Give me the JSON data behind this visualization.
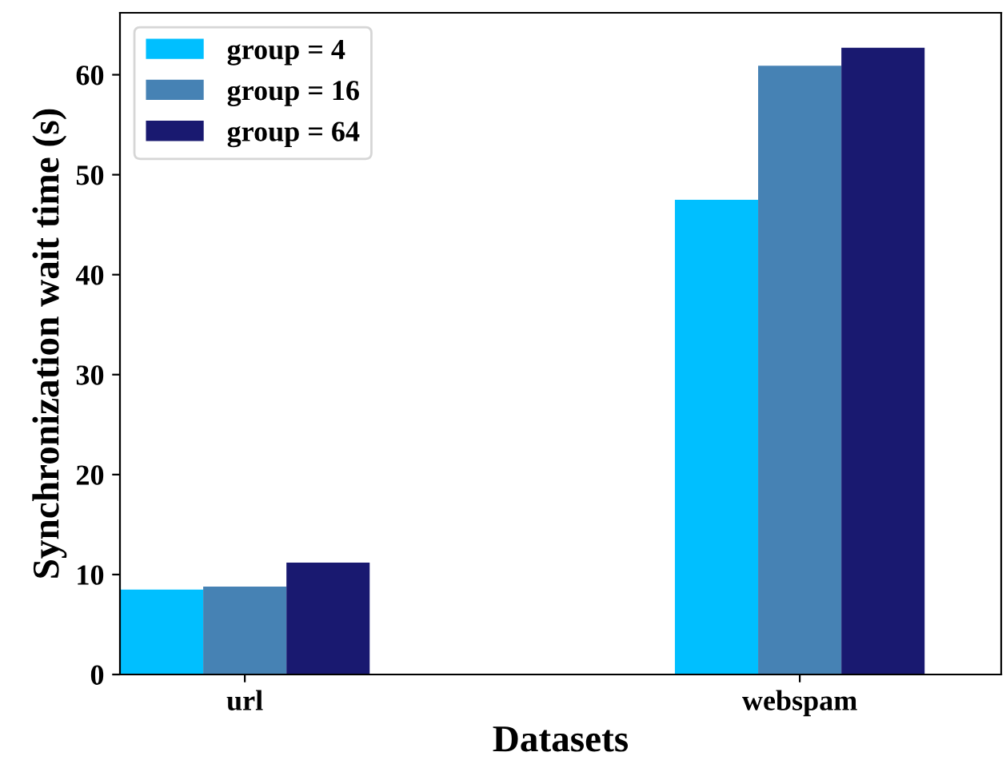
{
  "chart_data": {
    "type": "bar",
    "xlabel": "Datasets",
    "ylabel": "Synchronization wait time (s)",
    "categories": [
      "url",
      "webspam"
    ],
    "series": [
      {
        "name": "group = 4",
        "color": "#00bfff",
        "values": [
          8.5,
          47.5
        ]
      },
      {
        "name": "group = 16",
        "color": "#4682b4",
        "values": [
          8.8,
          60.9
        ]
      },
      {
        "name": "group = 64",
        "color": "#191970",
        "values": [
          11.2,
          62.7
        ]
      }
    ],
    "ylim": [
      0,
      66.2
    ],
    "yticks": [
      0,
      10,
      20,
      30,
      40,
      50,
      60
    ],
    "grid": false,
    "legend": "top left"
  }
}
